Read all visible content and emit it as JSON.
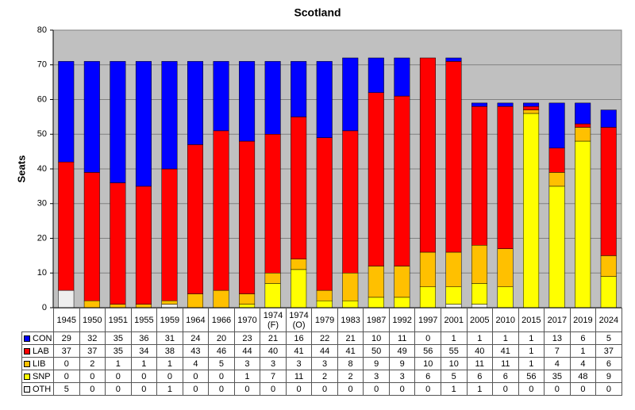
{
  "chart_data": {
    "type": "stacked-bar",
    "title": "Scotland",
    "y_label": "Seats",
    "categories": [
      "1945",
      "1950",
      "1951",
      "1955",
      "1959",
      "1964",
      "1966",
      "1970",
      "1974 (F)",
      "1974 (O)",
      "1979",
      "1983",
      "1987",
      "1992",
      "1997",
      "2001",
      "2005",
      "2010",
      "2015",
      "2017",
      "2019",
      "2024"
    ],
    "series": [
      {
        "name": "CON",
        "color": "#0000ff",
        "values": [
          29,
          32,
          35,
          36,
          31,
          24,
          20,
          23,
          21,
          16,
          22,
          21,
          10,
          11,
          0,
          1,
          1,
          1,
          1,
          13,
          6,
          5
        ]
      },
      {
        "name": "LAB",
        "color": "#ff0000",
        "values": [
          37,
          37,
          35,
          34,
          38,
          43,
          46,
          44,
          40,
          41,
          44,
          41,
          50,
          49,
          56,
          55,
          40,
          41,
          1,
          7,
          1,
          37
        ]
      },
      {
        "name": "LIB",
        "color": "#ffc000",
        "values": [
          0,
          2,
          1,
          1,
          1,
          4,
          5,
          3,
          3,
          3,
          3,
          8,
          9,
          9,
          10,
          10,
          11,
          11,
          1,
          4,
          4,
          6
        ]
      },
      {
        "name": "SNP",
        "color": "#ffff00",
        "values": [
          0,
          0,
          0,
          0,
          0,
          0,
          0,
          1,
          7,
          11,
          2,
          2,
          3,
          3,
          6,
          5,
          6,
          6,
          56,
          35,
          48,
          9
        ]
      },
      {
        "name": "OTH",
        "color": "#eeeeee",
        "values": [
          5,
          0,
          0,
          0,
          1,
          0,
          0,
          0,
          0,
          0,
          0,
          0,
          0,
          0,
          0,
          1,
          1,
          0,
          0,
          0,
          0,
          0
        ]
      }
    ],
    "ylim": [
      0,
      80
    ],
    "yticks": [
      0,
      10,
      20,
      30,
      40,
      50,
      60,
      70,
      80
    ],
    "grid": true,
    "background": "#c0c0c0"
  }
}
